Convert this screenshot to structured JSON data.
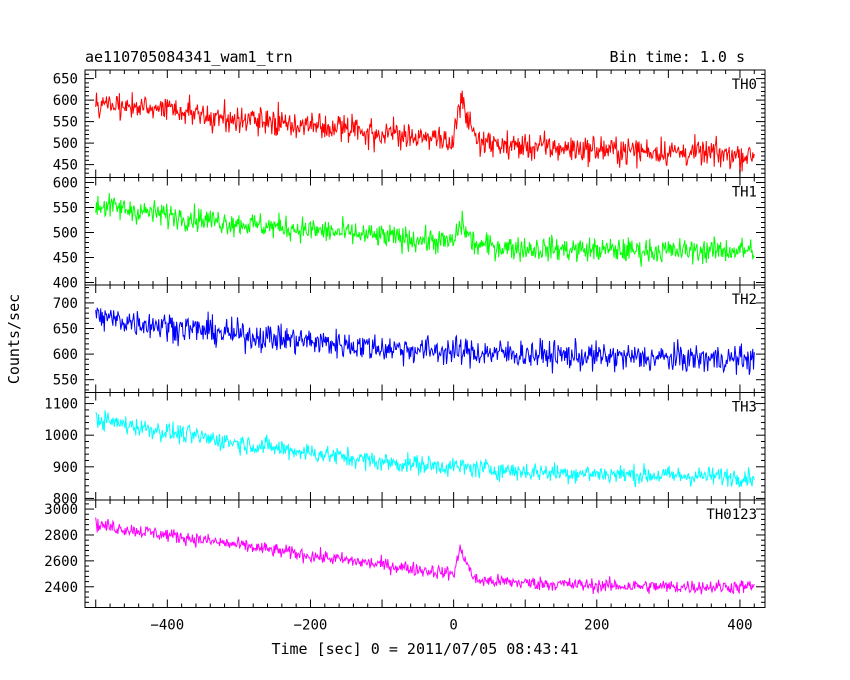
{
  "chart_data": {
    "type": "line",
    "title": "ae110705084341_wam1_trn",
    "subtitle": "Bin time: 1.0 s",
    "xlabel": "Time [sec] 0 = 2011/07/05 08:43:41",
    "ylabel": "Counts/sec",
    "xlim": [
      -515,
      435
    ],
    "xticks": [
      -400,
      -200,
      0,
      200,
      400
    ],
    "grid": false,
    "panels": [
      {
        "name": "TH0",
        "color": "#ff0000",
        "ylim": [
          420,
          670
        ],
        "yticks": [
          450,
          500,
          550,
          600,
          650
        ],
        "x": [
          -500,
          -400,
          -300,
          -200,
          -100,
          0,
          10,
          20,
          30,
          100,
          200,
          300,
          420
        ],
        "y": [
          590,
          580,
          555,
          540,
          525,
          505,
          600,
          560,
          500,
          492,
          485,
          480,
          470
        ],
        "noise": 42
      },
      {
        "name": "TH1",
        "color": "#00ff00",
        "ylim": [
          395,
          610
        ],
        "yticks": [
          400,
          450,
          500,
          550,
          600
        ],
        "x": [
          -500,
          -400,
          -300,
          -200,
          -100,
          0,
          10,
          20,
          30,
          100,
          200,
          300,
          420
        ],
        "y": [
          555,
          535,
          518,
          505,
          492,
          480,
          520,
          495,
          475,
          468,
          465,
          463,
          465
        ],
        "noise": 32
      },
      {
        "name": "TH2",
        "color": "#0000ff",
        "ylim": [
          525,
          735
        ],
        "yticks": [
          550,
          600,
          650,
          700
        ],
        "x": [
          -500,
          -400,
          -300,
          -200,
          -100,
          0,
          100,
          200,
          300,
          420
        ],
        "y": [
          672,
          655,
          638,
          625,
          612,
          605,
          600,
          595,
          592,
          590
        ],
        "noise": 36
      },
      {
        "name": "TH3",
        "color": "#00ffff",
        "ylim": [
          795,
          1135
        ],
        "yticks": [
          800,
          900,
          1000,
          1100
        ],
        "x": [
          -500,
          -400,
          -300,
          -200,
          -100,
          0,
          100,
          200,
          300,
          420
        ],
        "y": [
          1050,
          1010,
          975,
          945,
          915,
          900,
          885,
          878,
          872,
          868
        ],
        "noise": 40
      },
      {
        "name": "TH0123",
        "color": "#ff00ff",
        "ylim": [
          2240,
          3070
        ],
        "yticks": [
          2400,
          2600,
          2800,
          3000
        ],
        "x": [
          -500,
          -400,
          -300,
          -200,
          -100,
          0,
          10,
          20,
          30,
          100,
          200,
          300,
          420
        ],
        "y": [
          2880,
          2800,
          2720,
          2640,
          2570,
          2500,
          2700,
          2560,
          2450,
          2430,
          2410,
          2400,
          2400
        ],
        "noise": 70
      }
    ]
  }
}
